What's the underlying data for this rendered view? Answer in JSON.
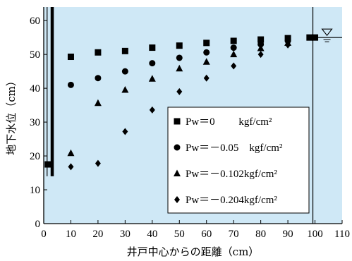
{
  "chart_data": {
    "type": "scatter",
    "xlabel": "井戸中心からの距離（cm）",
    "ylabel": "地下水位（cm）",
    "xlim": [
      0,
      110
    ],
    "ylim": [
      0,
      64
    ],
    "xticks": [
      "0",
      "10",
      "20",
      "30",
      "40",
      "50",
      "60",
      "70",
      "80",
      "90",
      "100",
      "110"
    ],
    "yticks": [
      "0",
      "10",
      "20",
      "30",
      "40",
      "50",
      "60"
    ],
    "background_color": "#cfe8f6",
    "legend_position": "lower-right",
    "well_wall_x": 1.5,
    "outer_boundary_x": 100,
    "water_level_y": 55,
    "series": [
      {
        "name": "Pw＝0　　 kgf/cm²",
        "marker": "square",
        "x": [
          1.5,
          10,
          20,
          30,
          40,
          50,
          60,
          70,
          80,
          90,
          98,
          100
        ],
        "y": [
          17.5,
          49.3,
          50.6,
          51.0,
          52.0,
          52.6,
          53.4,
          54.0,
          54.4,
          54.8,
          55.0,
          55.0
        ]
      },
      {
        "name": "Pw＝－0.05　kgf/cm²",
        "marker": "circle",
        "x": [
          10,
          20,
          30,
          40,
          50,
          60,
          70,
          80,
          90
        ],
        "y": [
          41.0,
          43.0,
          45.0,
          47.4,
          49.0,
          50.6,
          52.0,
          53.0,
          54.0
        ]
      },
      {
        "name": "Pw＝－0.102kgf/cm²",
        "marker": "triangle",
        "x": [
          10,
          20,
          30,
          40,
          50,
          60,
          70,
          80,
          90
        ],
        "y": [
          20.8,
          35.6,
          39.5,
          42.8,
          45.8,
          47.8,
          50.0,
          51.8,
          53.4
        ]
      },
      {
        "name": "Pw＝－0.204kgf/cm²",
        "marker": "diamond",
        "x": [
          10,
          20,
          30,
          40,
          50,
          60,
          70,
          80,
          90
        ],
        "y": [
          16.8,
          17.8,
          27.2,
          33.6,
          39.0,
          43.0,
          46.6,
          50.0,
          52.8
        ]
      }
    ]
  }
}
